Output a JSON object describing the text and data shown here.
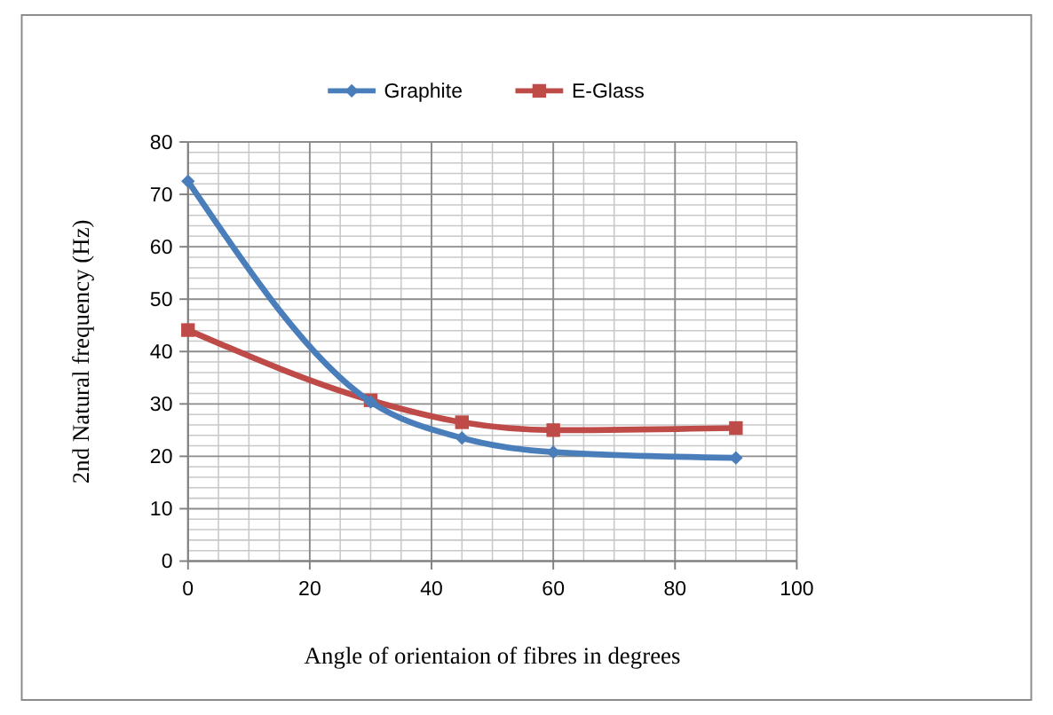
{
  "chart_data": {
    "type": "line",
    "xlabel": "Angle of orientaion of fibres in degrees",
    "ylabel": "2nd Natural frequency (Hz)",
    "x": [
      0,
      30,
      45,
      60,
      90
    ],
    "series": [
      {
        "name": "Graphite",
        "color": "#4a7ebb",
        "marker": "diamond",
        "values": [
          72.5,
          30.4,
          23.5,
          20.8,
          19.7
        ]
      },
      {
        "name": "E-Glass",
        "color": "#be4b48",
        "marker": "square",
        "values": [
          44.1,
          30.7,
          26.5,
          25.0,
          25.4
        ]
      }
    ],
    "xlim": [
      0,
      100
    ],
    "xticks": [
      0,
      20,
      40,
      60,
      80,
      100
    ],
    "ylim": [
      0,
      80
    ],
    "yticks": [
      0,
      10,
      20,
      30,
      40,
      50,
      60,
      70,
      80
    ],
    "grid": true,
    "legend": "top"
  }
}
